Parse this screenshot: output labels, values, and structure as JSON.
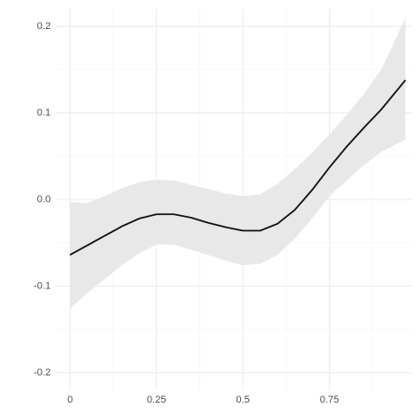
{
  "chart_data": {
    "type": "line",
    "x": [
      0,
      0.05,
      0.1,
      0.15,
      0.2,
      0.25,
      0.3,
      0.35,
      0.4,
      0.45,
      0.5,
      0.55,
      0.6,
      0.65,
      0.7,
      0.75,
      0.8,
      0.85,
      0.9,
      0.97
    ],
    "values": [
      -0.064,
      -0.053,
      -0.042,
      -0.031,
      -0.022,
      -0.017,
      -0.017,
      -0.021,
      -0.027,
      -0.032,
      -0.036,
      -0.036,
      -0.028,
      -0.012,
      0.011,
      0.037,
      0.061,
      0.083,
      0.104,
      0.138
    ],
    "upper": [
      -0.003,
      -0.004,
      0.004,
      0.013,
      0.02,
      0.023,
      0.022,
      0.017,
      0.012,
      0.007,
      0.004,
      0.006,
      0.018,
      0.035,
      0.054,
      0.075,
      0.098,
      0.122,
      0.15,
      0.21
    ],
    "lower": [
      -0.126,
      -0.108,
      -0.092,
      -0.076,
      -0.062,
      -0.052,
      -0.052,
      -0.058,
      -0.064,
      -0.071,
      -0.076,
      -0.074,
      -0.064,
      -0.045,
      -0.022,
      0.004,
      0.022,
      0.04,
      0.055,
      0.069
    ],
    "color": "#111111",
    "band_color": "#e8e8e8",
    "xlim": [
      -0.04,
      0.99
    ],
    "ylim": [
      -0.22,
      0.22
    ],
    "xticks": [
      0,
      0.25,
      0.5,
      0.75
    ],
    "yticks": [
      -0.2,
      -0.1,
      {
        "value": 0,
        "label": "0.0"
      },
      0.1,
      0.2
    ],
    "xticks_minor": [
      0.125,
      0.375,
      0.625,
      0.875
    ],
    "yticks_minor": [
      -0.15,
      -0.05,
      0.05,
      0.15
    ],
    "grid": true
  }
}
